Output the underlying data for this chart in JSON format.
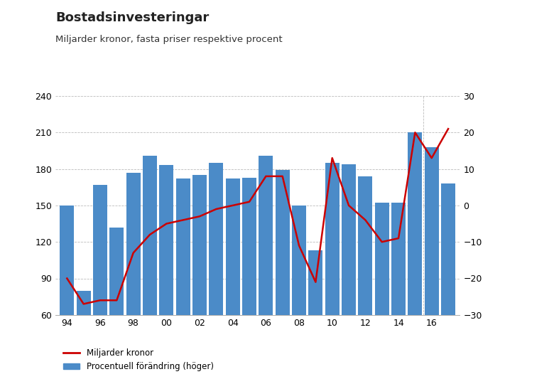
{
  "title": "Bostadsinvesteringar",
  "subtitle": "Miljarder kronor, fasta priser respektive procent",
  "years": [
    1994,
    1995,
    1996,
    1997,
    1998,
    1999,
    2000,
    2001,
    2002,
    2003,
    2004,
    2005,
    2006,
    2007,
    2008,
    2009,
    2010,
    2011,
    2012,
    2013,
    2014,
    2015,
    2016,
    2017
  ],
  "bar_values": [
    150,
    80,
    167,
    132,
    177,
    191,
    183,
    172,
    175,
    185,
    172,
    173,
    191,
    179,
    150,
    113,
    185,
    184,
    174,
    152,
    152,
    210,
    198,
    168
  ],
  "line_values": [
    -20,
    -27,
    -26,
    -26,
    -13,
    -8,
    -5,
    -4,
    -3,
    -1,
    0,
    1,
    8,
    8,
    -11,
    -21,
    13,
    0,
    -4,
    -10,
    -9,
    20,
    13,
    21
  ],
  "bar_color": "#4B8BC8",
  "line_color": "#CC0000",
  "ylim_left": [
    60,
    240
  ],
  "ylim_right": [
    -30,
    30
  ],
  "yticks_left": [
    60,
    90,
    120,
    150,
    180,
    210,
    240
  ],
  "yticks_right": [
    -30,
    -20,
    -10,
    0,
    10,
    20,
    30
  ],
  "xtick_labels": [
    "94",
    "96",
    "98",
    "00",
    "02",
    "04",
    "06",
    "08",
    "10",
    "12",
    "14",
    "16"
  ],
  "xtick_positions": [
    1994,
    1996,
    1998,
    2000,
    2002,
    2004,
    2006,
    2008,
    2010,
    2012,
    2014,
    2016
  ],
  "legend_line_label": "Miljarder kronor",
  "legend_bar_label": "Procentuell förändring (höger)",
  "vline_x": 2015.5,
  "background_color": "#ffffff",
  "grid_color": "#bbbbbb",
  "xlim": [
    1993.3,
    2017.7
  ]
}
